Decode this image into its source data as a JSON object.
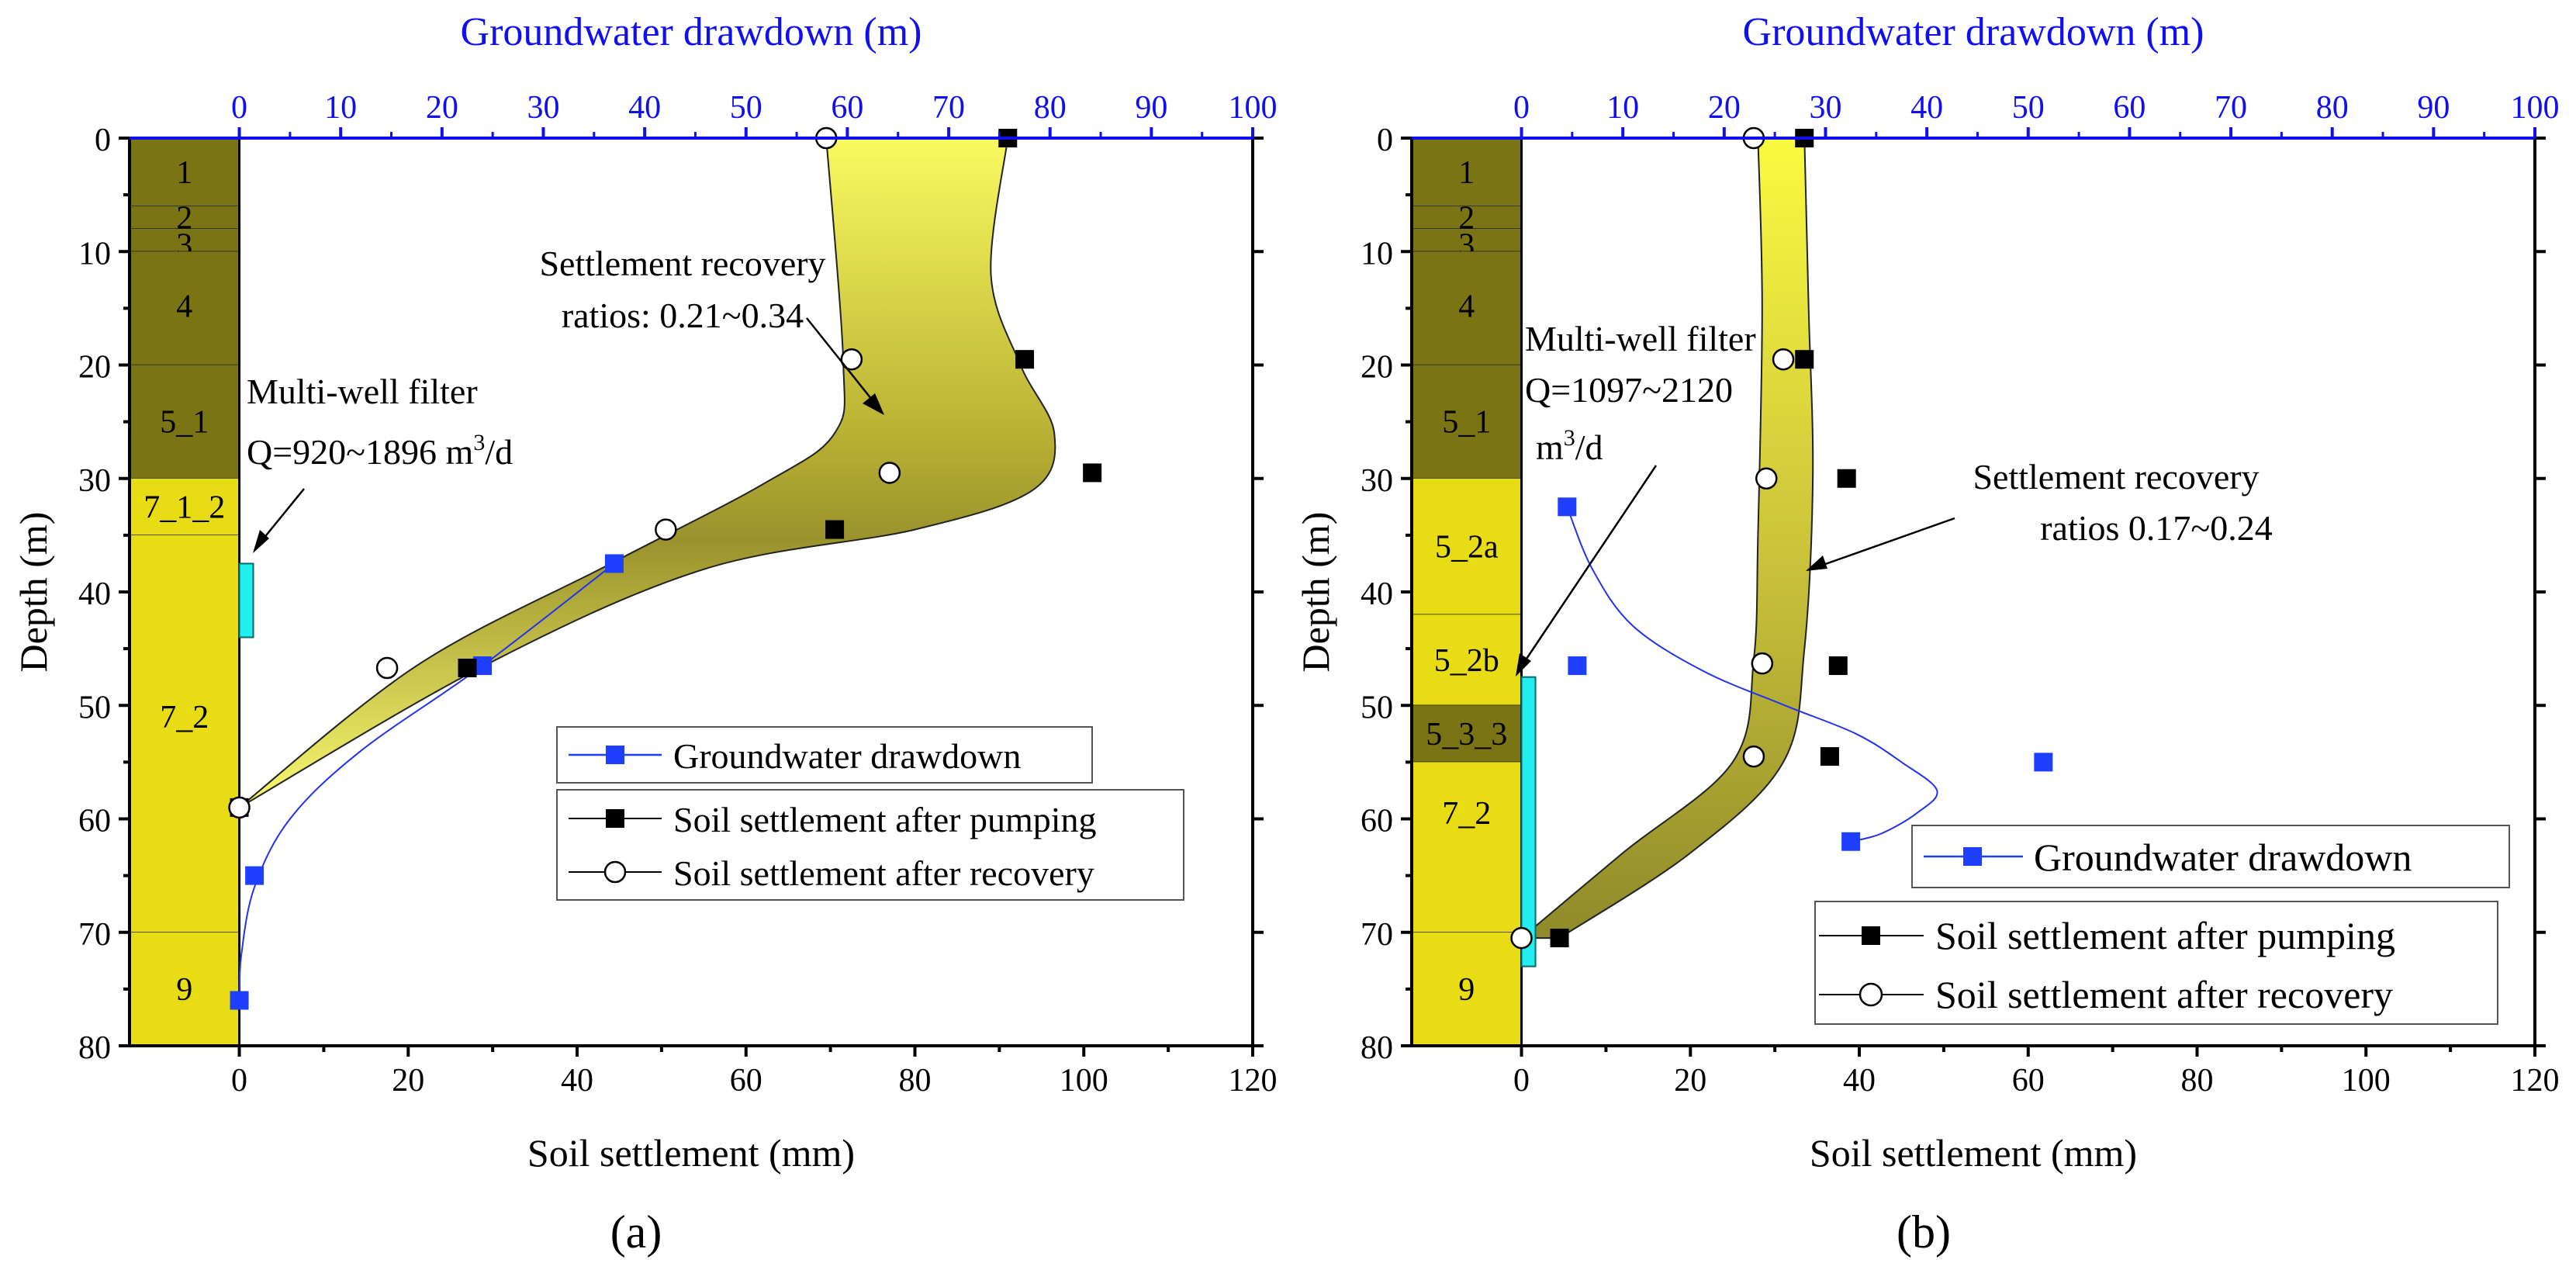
{
  "chart_data": [
    {
      "type": "scatter",
      "panel_label": "(a)",
      "xlabel_bottom": "Soil settlement (mm)",
      "xlabel_top": "Groundwater drawdown (m)",
      "ylabel": "Depth (m)",
      "xlim_bottom": [
        -13,
        120
      ],
      "xlim_top": [
        0,
        100
      ],
      "ylim": [
        0,
        80
      ],
      "y_inverted": true,
      "xticks_bottom": [
        0,
        20,
        40,
        60,
        80,
        100,
        120
      ],
      "xticks_top": [
        0,
        10,
        20,
        30,
        40,
        50,
        60,
        70,
        80,
        90,
        100
      ],
      "yticks": [
        0,
        10,
        20,
        30,
        40,
        50,
        60,
        70,
        80
      ],
      "layers": [
        {
          "name": "1",
          "top": 0,
          "bottom": 6,
          "color": "#7a7414",
          "label_depth": 3
        },
        {
          "name": "2",
          "top": 6,
          "bottom": 8,
          "color": "#7a7414",
          "label_depth": 7
        },
        {
          "name": "3",
          "top": 8,
          "bottom": 10,
          "color": "#7a7414",
          "label_depth": 9.4
        },
        {
          "name": "4",
          "top": 10,
          "bottom": 20,
          "color": "#7a7414",
          "label_depth": 14.8
        },
        {
          "name": "5_1",
          "top": 20,
          "bottom": 30,
          "color": "#7a7414",
          "label_depth": 25
        },
        {
          "name": "7_1_2",
          "top": 30,
          "bottom": 35,
          "color": "#e8dc14",
          "label_depth": 32.5
        },
        {
          "name": "7_2",
          "top": 35,
          "bottom": 70,
          "color": "#e8dc14",
          "label_depth": 51
        },
        {
          "name": "9",
          "top": 70,
          "bottom": 80,
          "color": "#e8dc14",
          "label_depth": 75
        }
      ],
      "filter": {
        "top": 37.5,
        "bottom": 44
      },
      "series": [
        {
          "name": "Groundwater drawdown",
          "axis": "top",
          "marker": "square",
          "color": "#1f3fff",
          "points": [
            [
              37,
              37.5
            ],
            [
              24,
              46.5
            ],
            [
              1.5,
              65
            ],
            [
              0,
              76
            ]
          ]
        },
        {
          "name": "Soil settlement after pumping",
          "axis": "bottom",
          "marker": "filled-square",
          "color": "#000000",
          "points": [
            [
              91,
              0
            ],
            [
              93,
              19.5
            ],
            [
              101,
              29.5
            ],
            [
              70.5,
              34.5
            ],
            [
              27,
              46.7
            ],
            [
              0,
              59
            ]
          ]
        },
        {
          "name": "Soil settlement after recovery",
          "axis": "bottom",
          "marker": "open-circle",
          "color": "#000000",
          "points": [
            [
              69.5,
              0
            ],
            [
              72.5,
              19.5
            ],
            [
              77,
              29.5
            ],
            [
              50.5,
              34.5
            ],
            [
              17.5,
              46.7
            ],
            [
              0,
              59
            ]
          ]
        }
      ],
      "band_left": [
        [
          69.5,
          0
        ],
        [
          71.5,
          19.5
        ],
        [
          70.5,
          26
        ],
        [
          62,
          30.5
        ],
        [
          44,
          37.5
        ],
        [
          21,
          46.5
        ],
        [
          0,
          59
        ]
      ],
      "band_right": [
        [
          91,
          0
        ],
        [
          89,
          12
        ],
        [
          92.5,
          20
        ],
        [
          96.5,
          26
        ],
        [
          94,
          31
        ],
        [
          80,
          34.5
        ],
        [
          55,
          38
        ],
        [
          29,
          46.5
        ],
        [
          0,
          59
        ]
      ],
      "drawdown_curve": [
        [
          37,
          37.5
        ],
        [
          24,
          46.5
        ],
        [
          12,
          54
        ],
        [
          5,
          60
        ],
        [
          1.5,
          66
        ],
        [
          0.2,
          72
        ],
        [
          0,
          76
        ]
      ],
      "annotations": [
        {
          "id": "recovery",
          "lines": [
            "Settlement recovery",
            "ratios: 0.21~0.34"
          ]
        },
        {
          "id": "filter",
          "lines": [
            "Multi-well filter",
            "Q=920~1896 m",
            "3",
            "/d"
          ]
        }
      ],
      "legend": [
        "Groundwater drawdown",
        "Soil settlement after pumping",
        "Soil settlement after recovery"
      ]
    },
    {
      "type": "scatter",
      "panel_label": "(b)",
      "xlabel_bottom": "Soil settlement (mm)",
      "xlabel_top": "Groundwater drawdown (m)",
      "ylabel": "Depth (m)",
      "xlim_bottom": [
        -13,
        120
      ],
      "xlim_top": [
        0,
        100
      ],
      "ylim": [
        0,
        80
      ],
      "y_inverted": true,
      "xticks_bottom": [
        0,
        20,
        40,
        60,
        80,
        100,
        120
      ],
      "xticks_top": [
        0,
        10,
        20,
        30,
        40,
        50,
        60,
        70,
        80,
        90,
        100
      ],
      "yticks": [
        0,
        10,
        20,
        30,
        40,
        50,
        60,
        70,
        80
      ],
      "layers": [
        {
          "name": "1",
          "top": 0,
          "bottom": 6,
          "color": "#7a7414",
          "label_depth": 3
        },
        {
          "name": "2",
          "top": 6,
          "bottom": 8,
          "color": "#7a7414",
          "label_depth": 7
        },
        {
          "name": "3",
          "top": 8,
          "bottom": 10,
          "color": "#7a7414",
          "label_depth": 9.4
        },
        {
          "name": "4",
          "top": 10,
          "bottom": 20,
          "color": "#7a7414",
          "label_depth": 14.8
        },
        {
          "name": "5_1",
          "top": 20,
          "bottom": 30,
          "color": "#7a7414",
          "label_depth": 25
        },
        {
          "name": "5_2a",
          "top": 30,
          "bottom": 42,
          "color": "#e8dc14",
          "label_depth": 36
        },
        {
          "name": "5_2b",
          "top": 42,
          "bottom": 50,
          "color": "#e8dc14",
          "label_depth": 46
        },
        {
          "name": "5_3_3",
          "top": 50,
          "bottom": 55,
          "color": "#7a7414",
          "label_depth": 52.5
        },
        {
          "name": "7_2",
          "top": 55,
          "bottom": 70,
          "color": "#e8dc14",
          "label_depth": 59.5
        },
        {
          "name": "9",
          "top": 70,
          "bottom": 80,
          "color": "#e8dc14",
          "label_depth": 75
        }
      ],
      "filter": {
        "top": 47.5,
        "bottom": 73
      },
      "series": [
        {
          "name": "Groundwater drawdown",
          "axis": "top",
          "marker": "square",
          "color": "#1f3fff",
          "points": [
            [
              4.5,
              32.5
            ],
            [
              5.5,
              46.5
            ],
            [
              51.5,
              55
            ],
            [
              32.5,
              62
            ]
          ]
        },
        {
          "name": "Soil settlement after pumping",
          "axis": "bottom",
          "marker": "filled-square",
          "color": "#000000",
          "points": [
            [
              33.5,
              0
            ],
            [
              33.5,
              19.5
            ],
            [
              38.5,
              30
            ],
            [
              37.5,
              46.5
            ],
            [
              36.5,
              54.5
            ],
            [
              4.5,
              70.5
            ]
          ]
        },
        {
          "name": "Soil settlement after recovery",
          "axis": "bottom",
          "marker": "open-circle",
          "color": "#000000",
          "points": [
            [
              27.5,
              0
            ],
            [
              31,
              19.5
            ],
            [
              29,
              30
            ],
            [
              28.5,
              46.3
            ],
            [
              27.5,
              54.5
            ],
            [
              0,
              70.5
            ]
          ]
        }
      ],
      "band_left": [
        [
          28,
          0
        ],
        [
          28.5,
          15
        ],
        [
          28,
          35
        ],
        [
          27.5,
          46
        ],
        [
          25,
          55
        ],
        [
          12,
          63
        ],
        [
          0,
          70.5
        ]
      ],
      "band_right": [
        [
          33.5,
          0
        ],
        [
          34,
          15
        ],
        [
          34.5,
          30
        ],
        [
          33.5,
          45
        ],
        [
          31,
          55
        ],
        [
          20,
          63
        ],
        [
          4.5,
          70.5
        ]
      ],
      "drawdown_curve": [
        [
          4.5,
          32.5
        ],
        [
          7,
          38
        ],
        [
          11,
          43
        ],
        [
          18,
          47
        ],
        [
          26,
          50
        ],
        [
          33,
          52.5
        ],
        [
          37.5,
          55
        ],
        [
          41,
          57.5
        ],
        [
          39,
          59.5
        ],
        [
          35.5,
          61.3
        ],
        [
          32.5,
          62
        ]
      ],
      "annotations": [
        {
          "id": "filter",
          "lines": [
            "Multi-well filter",
            "Q=1097~2120",
            "m",
            "3",
            "/d"
          ]
        },
        {
          "id": "recovery",
          "lines": [
            "Settlement recovery",
            "ratios 0.17~0.24"
          ]
        }
      ],
      "legend": [
        "Groundwater drawdown",
        "Soil settlement after pumping",
        "Soil settlement after recovery"
      ]
    }
  ]
}
